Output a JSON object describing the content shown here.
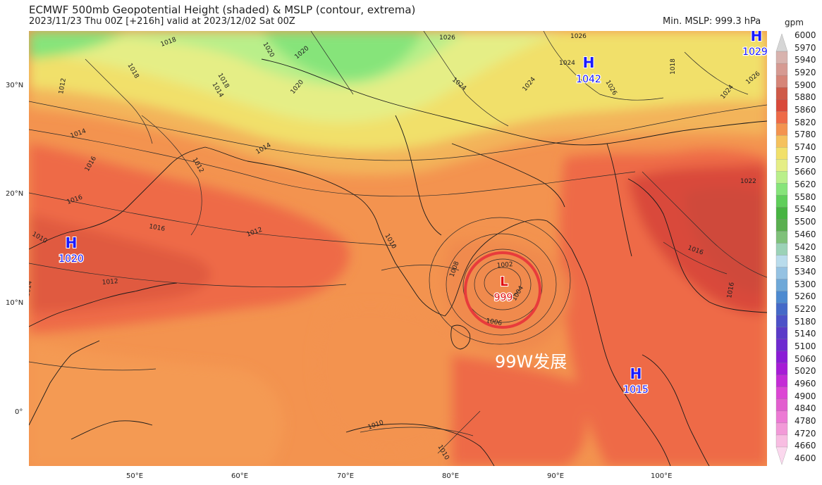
{
  "header": {
    "title": "ECMWF 500mb Geopotential Height (shaded) & MSLP (contour, extrema)",
    "subtitle": "2023/11/23 Thu 00Z [+216h] valid at 2023/12/02 Sat 00Z",
    "min_mslp": "Min. MSLP: 999.3 hPa",
    "units": "gpm"
  },
  "axes": {
    "lat_labels": [
      "30°N",
      "20°N",
      "10°N",
      "0°"
    ],
    "lon_labels": [
      "50°E",
      "60°E",
      "70°E",
      "80°E",
      "90°E",
      "100°E"
    ]
  },
  "pressure_centers": [
    {
      "type": "H",
      "value": "1020",
      "color": "#1a1aff"
    },
    {
      "type": "H",
      "value": "1042",
      "color": "#1a1aff"
    },
    {
      "type": "H",
      "value": "1029",
      "color": "#1a1aff"
    },
    {
      "type": "H",
      "value": "1015",
      "color": "#1a1aff"
    },
    {
      "type": "L",
      "value": "999",
      "color": "#e21010"
    }
  ],
  "annotation": {
    "text": "99W发展",
    "circle_color": "#e83b3b"
  },
  "contour_labels": [
    "1018",
    "1018",
    "1012",
    "1014",
    "1014",
    "1016",
    "1016",
    "1010",
    "1016",
    "1012",
    "1012",
    "1014",
    "1020",
    "1014",
    "1012",
    "1010",
    "1026",
    "1026",
    "1020",
    "1018",
    "1020",
    "1024",
    "1026",
    "1024",
    "1024",
    "1024",
    "1018",
    "1026",
    "1022",
    "1016",
    "1008",
    "1002",
    "1004",
    "1006",
    "1010",
    "1010",
    "1016"
  ],
  "colorbar": {
    "units": "gpm",
    "levels": [
      "6000",
      "5970",
      "5940",
      "5920",
      "5900",
      "5880",
      "5860",
      "5820",
      "5780",
      "5740",
      "5700",
      "5660",
      "5620",
      "5580",
      "5540",
      "5500",
      "5460",
      "5420",
      "5380",
      "5340",
      "5300",
      "5260",
      "5220",
      "5180",
      "5140",
      "5100",
      "5060",
      "5020",
      "4960",
      "4900",
      "4840",
      "4780",
      "4720",
      "4660",
      "4600"
    ],
    "colors": [
      "#d6d6d6",
      "#d8b3ae",
      "#d69a92",
      "#d68578",
      "#cf5a48",
      "#d9493a",
      "#ee6a47",
      "#f3934f",
      "#f5c15d",
      "#f1e06a",
      "#e5ee86",
      "#b9ef8a",
      "#86e47a",
      "#5fce5a",
      "#47b442",
      "#5aaf50",
      "#7fc17a",
      "#9bd2b7",
      "#b9dcec",
      "#95c2e2",
      "#6ea8d8",
      "#4d8ad0",
      "#4469c8",
      "#4c51c8",
      "#5a3bc8",
      "#6e2ad0",
      "#8a1cd6",
      "#a61cd6",
      "#c42cd6",
      "#dc46d4",
      "#e25fcf",
      "#ec7ad4",
      "#f29ad8",
      "#f8bde2",
      "#fbd8ee"
    ]
  }
}
